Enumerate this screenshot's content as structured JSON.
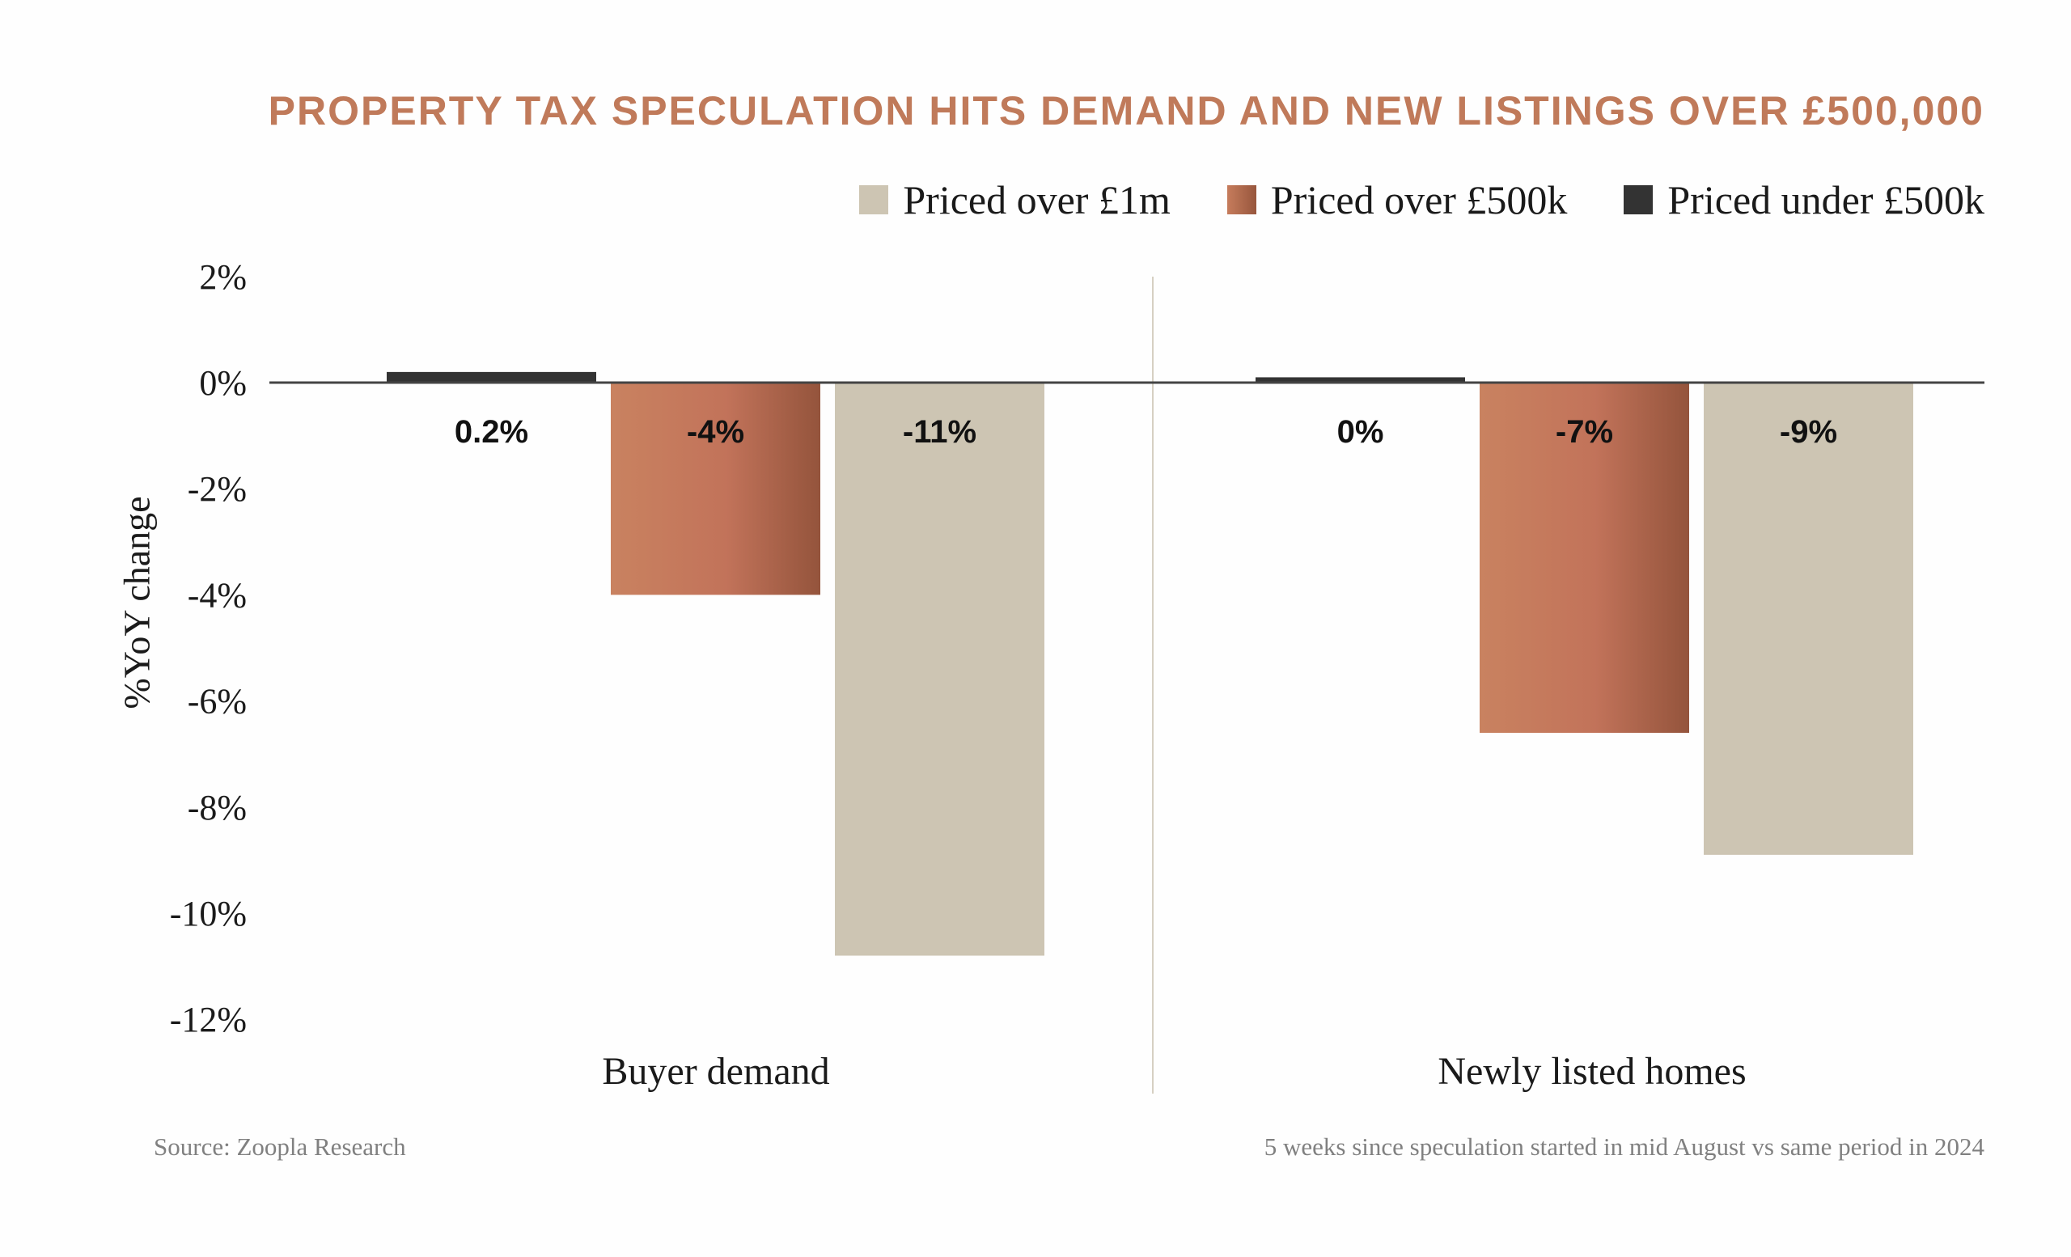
{
  "chart_data": {
    "type": "bar",
    "title": "PROPERTY TAX SPECULATION HITS DEMAND AND NEW LISTINGS OVER £500,000",
    "ylabel": "%YoY change",
    "xlabel": "",
    "ylim": [
      -12,
      2
    ],
    "yticks": [
      2,
      0,
      -2,
      -4,
      -6,
      -8,
      -10,
      -12
    ],
    "ytick_labels": [
      "2%",
      "0%",
      "-2%",
      "-4%",
      "-6%",
      "-8%",
      "-10%",
      "-12%"
    ],
    "grid": false,
    "legend_position": "top-right",
    "categories": [
      "Buyer demand",
      "Newly listed homes"
    ],
    "series": [
      {
        "name": "Priced under £500k",
        "color": "#333333",
        "values": [
          0.2,
          0.1
        ],
        "labels": [
          "0.2%",
          "0%"
        ]
      },
      {
        "name": "Priced over £500k",
        "color": "#c67c5c",
        "color_dark": "#97563d",
        "values": [
          -4.0,
          -6.6
        ],
        "labels": [
          "-4%",
          "-7%"
        ]
      },
      {
        "name": "Priced over £1m",
        "color": "#cdc5b3",
        "values": [
          -10.8,
          -8.9
        ],
        "labels": [
          "-11%",
          "-9%"
        ]
      }
    ],
    "legend_order": [
      2,
      1,
      0
    ]
  },
  "footer": {
    "source": "Source: Zoopla Research",
    "note": "5 weeks since speculation started in mid August vs same period in 2024"
  }
}
